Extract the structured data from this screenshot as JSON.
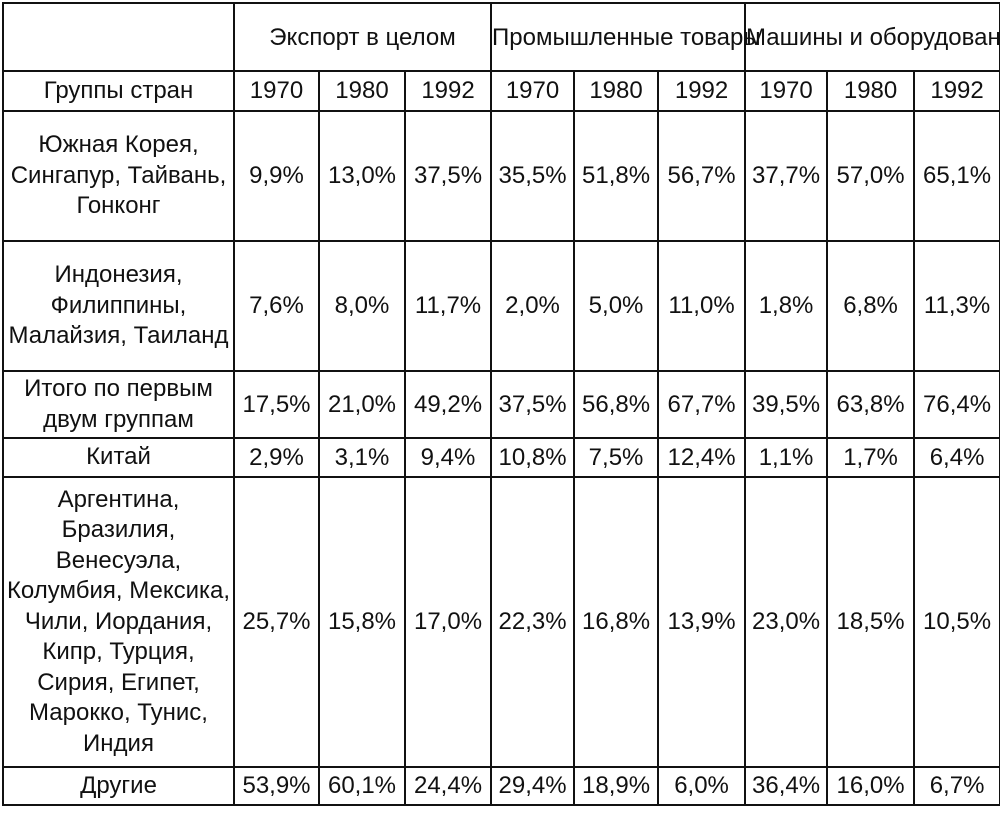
{
  "table": {
    "group_headers": [
      "Экспорт в целом",
      "Промышленные товары",
      "Машины и оборудование"
    ],
    "row_header_label": "Группы стран",
    "years": [
      "1970",
      "1980",
      "1992",
      "1970",
      "1980",
      "1992",
      "1970",
      "1980",
      "1992"
    ],
    "rows": [
      {
        "label": "Южная Корея, Сингапур, Тайвань, Гонконг",
        "values": [
          "9,9%",
          "13,0%",
          "37,5%",
          "35,5%",
          "51,8%",
          "56,7%",
          "37,7%",
          "57,0%",
          "65,1%"
        ]
      },
      {
        "label": "Индонезия, Филиппины, Малайзия, Таиланд",
        "values": [
          "7,6%",
          "8,0%",
          "11,7%",
          "2,0%",
          "5,0%",
          "11,0%",
          "1,8%",
          "6,8%",
          "11,3%"
        ]
      },
      {
        "label": "Итого по первым двум группам",
        "values": [
          "17,5%",
          "21,0%",
          "49,2%",
          "37,5%",
          "56,8%",
          "67,7%",
          "39,5%",
          "63,8%",
          "76,4%"
        ]
      },
      {
        "label": "Китай",
        "values": [
          "2,9%",
          "3,1%",
          "9,4%",
          "10,8%",
          "7,5%",
          "12,4%",
          "1,1%",
          "1,7%",
          "6,4%"
        ]
      },
      {
        "label": "Аргентина, Бразилия, Венесуэла, Колумбия, Мексика, Чили, Иордания, Кипр, Турция, Сирия, Египет, Марокко, Тунис, Индия",
        "values": [
          "25,7%",
          "15,8%",
          "17,0%",
          "22,3%",
          "16,8%",
          "13,9%",
          "23,0%",
          "18,5%",
          "10,5%"
        ]
      },
      {
        "label": "Другие",
        "values": [
          "53,9%",
          "60,1%",
          "24,4%",
          "29,4%",
          "18,9%",
          "6,0%",
          "36,4%",
          "16,0%",
          "6,7%"
        ]
      }
    ]
  }
}
